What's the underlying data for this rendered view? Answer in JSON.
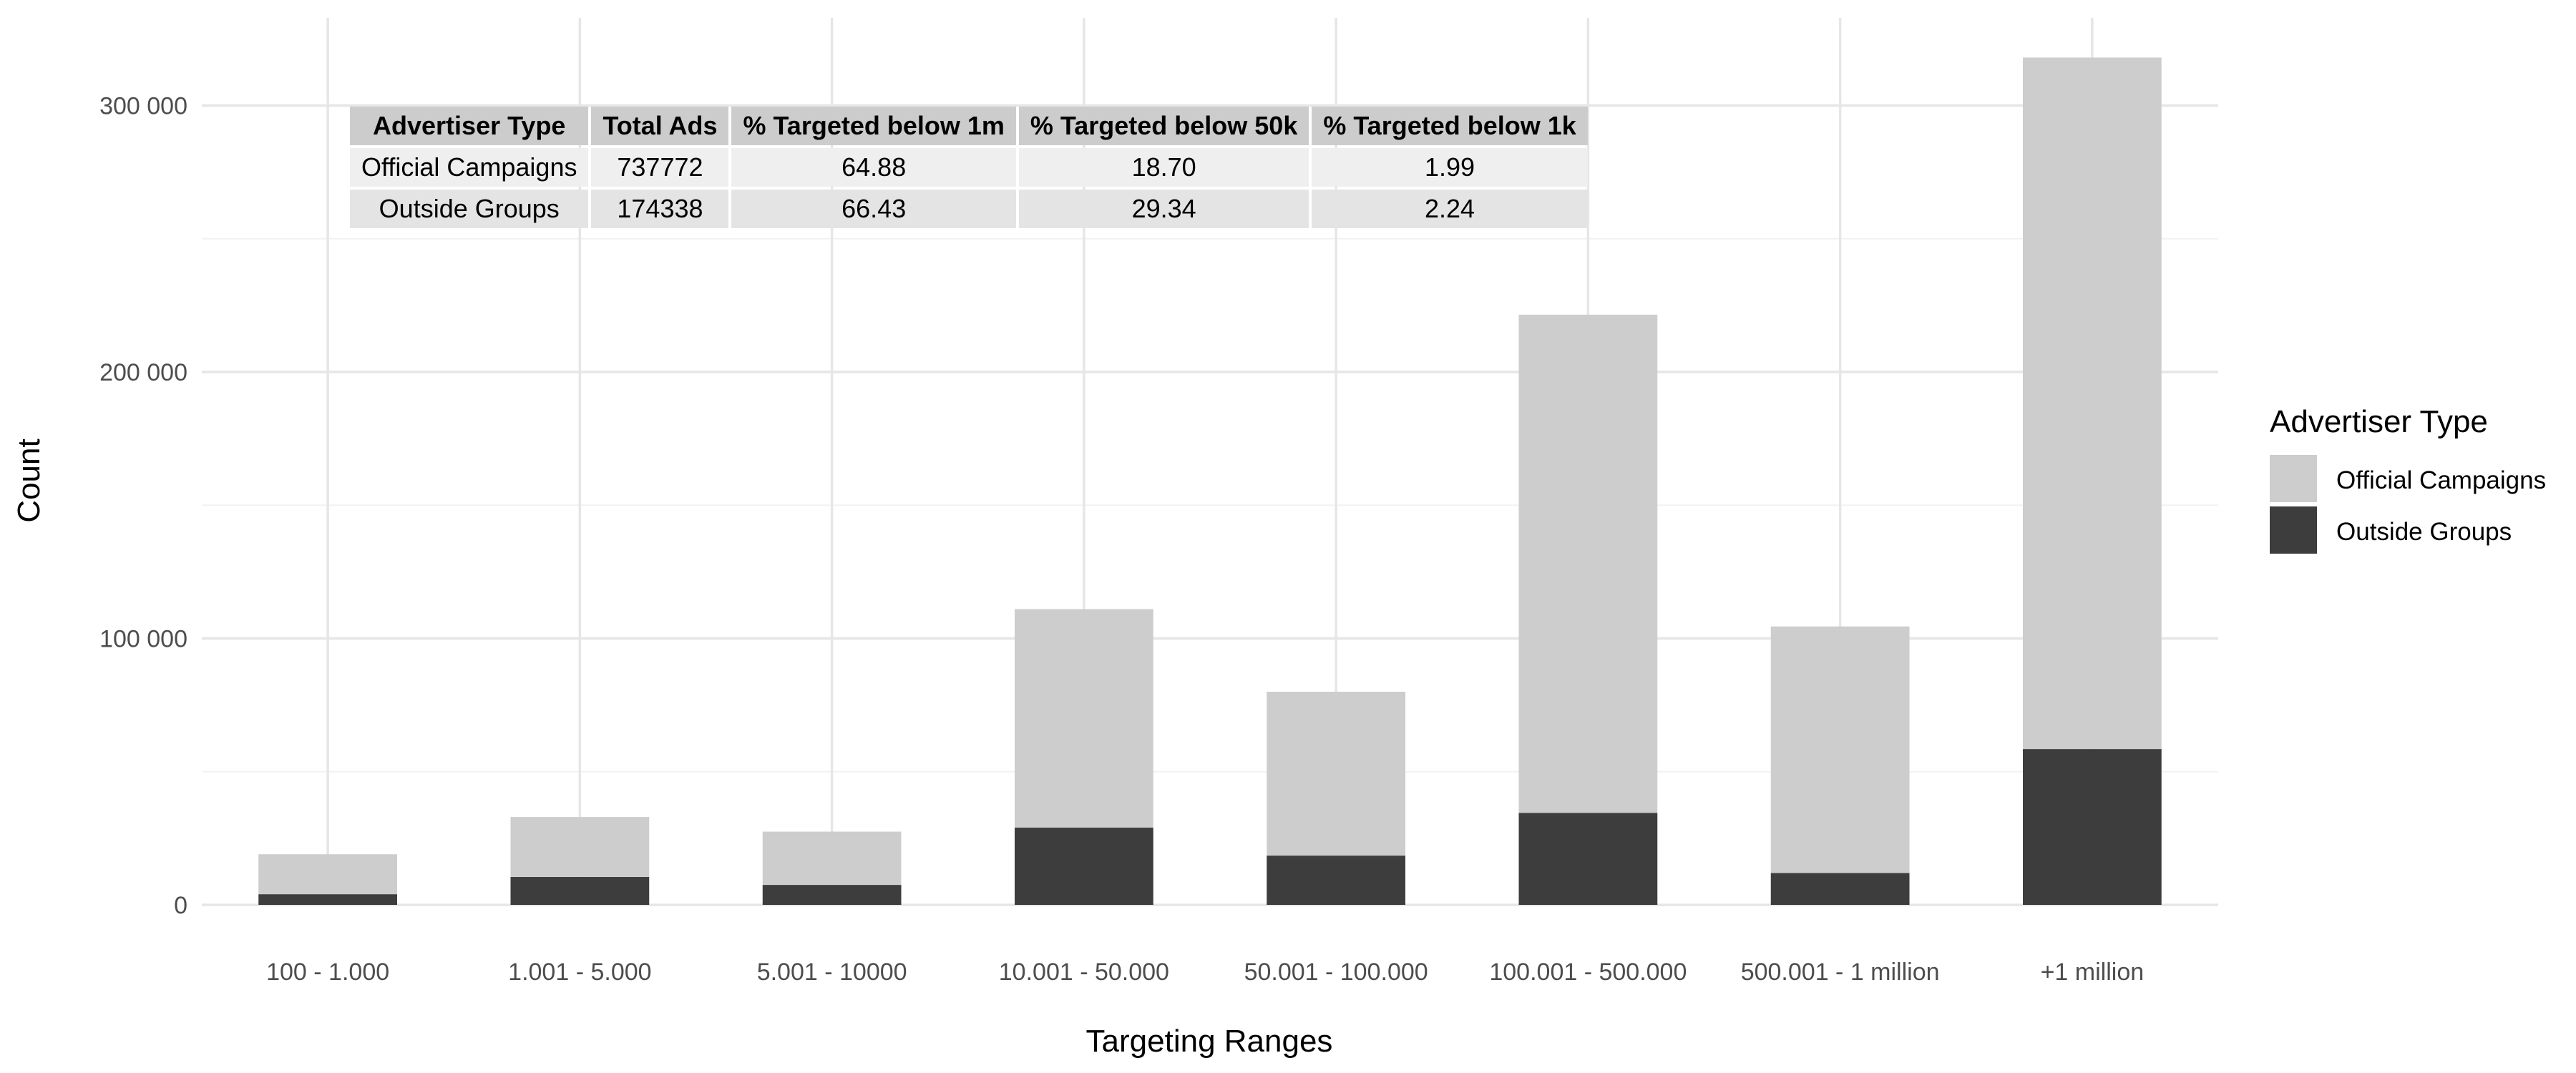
{
  "chart_data": {
    "type": "bar",
    "stacked": true,
    "xlabel": "Targeting Ranges",
    "ylabel": "Count",
    "ylim": [
      0,
      320000
    ],
    "yticks": [
      0,
      100000,
      200000,
      300000
    ],
    "ytick_labels": [
      "0",
      "100 000",
      "200 000",
      "300 000"
    ],
    "grid": true,
    "categories": [
      "100 - 1.000",
      "1.001 - 5.000",
      "5.001 - 10000",
      "10.001 - 50.000",
      "50.001 - 100.000",
      "100.001 - 500.000",
      "500.001 - 1 million",
      "+1 million"
    ],
    "series": [
      {
        "name": "Outside Groups",
        "color": "#3d3d3d",
        "values": [
          4000,
          10500,
          7500,
          29000,
          18500,
          34500,
          12000,
          58500
        ]
      },
      {
        "name": "Official Campaigns",
        "color": "#cdcdcd",
        "values": [
          15000,
          22500,
          20000,
          82000,
          61500,
          187000,
          92500,
          259500
        ]
      }
    ],
    "legend": {
      "title": "Advertiser Type",
      "placement": "right",
      "entries": [
        "Official Campaigns",
        "Outside Groups"
      ]
    }
  },
  "table": {
    "headers": [
      "Advertiser Type",
      "Total Ads",
      "% Targeted below 1m",
      "% Targeted below 50k",
      "% Targeted below 1k"
    ],
    "rows": [
      [
        "Official Campaigns",
        "737772",
        "64.88",
        "18.70",
        "1.99"
      ],
      [
        "Outside Groups",
        "174338",
        "66.43",
        "29.34",
        "2.24"
      ]
    ]
  }
}
